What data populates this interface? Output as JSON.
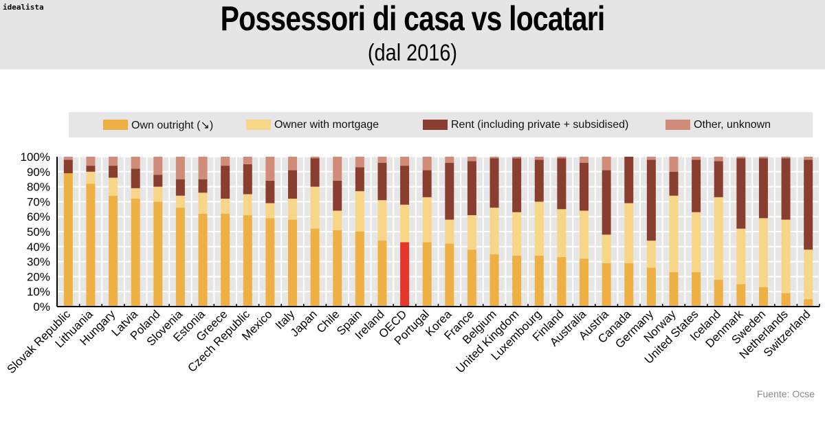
{
  "header": {
    "brand": "idealista",
    "title": "Possessori di casa vs locatari",
    "subtitle": "(dal 2016)"
  },
  "source": "Fuente: Ocse",
  "chart_data": {
    "type": "bar",
    "stacked": true,
    "ylim": [
      0,
      100
    ],
    "grid": true,
    "legend_position": "top",
    "yticks": [
      "0%",
      "10%",
      "20%",
      "30%",
      "40%",
      "50%",
      "60%",
      "70%",
      "80%",
      "90%",
      "100%"
    ],
    "series": [
      {
        "name": "Own outright (↘)",
        "color": "#eeb042"
      },
      {
        "name": "Owner with mortgage",
        "color": "#f7d688"
      },
      {
        "name": "Rent (including private + subsidised)",
        "color": "#8a3e30"
      },
      {
        "name": "Other, unknown",
        "color": "#d08c78"
      }
    ],
    "highlight": {
      "category": "OECD",
      "color": "#e8372a"
    },
    "categories": [
      "Slovak Republic",
      "Lithuania",
      "Hungary",
      "Latvia",
      "Poland",
      "Slovenia",
      "Estonia",
      "Greece",
      "Czech Republic",
      "Mexico",
      "Italy",
      "Japan",
      "Chile",
      "Spain",
      "Ireland",
      "OECD",
      "Portugal",
      "Korea",
      "France",
      "Belgium",
      "United Kingdom",
      "Luxembourg",
      "Finland",
      "Australia",
      "Austria",
      "Canada",
      "Germany",
      "Norway",
      "United States",
      "Iceland",
      "Denmark",
      "Sweden",
      "Netherlands",
      "Switzerland"
    ],
    "values": [
      [
        89,
        0,
        9,
        2
      ],
      [
        82,
        8,
        4,
        6
      ],
      [
        74,
        12,
        8,
        6
      ],
      [
        72,
        7,
        13,
        8
      ],
      [
        70,
        10,
        8,
        12
      ],
      [
        66,
        8,
        11,
        15
      ],
      [
        62,
        14,
        9,
        15
      ],
      [
        62,
        10,
        22,
        6
      ],
      [
        61,
        14,
        20,
        5
      ],
      [
        59,
        10,
        15,
        16
      ],
      [
        58,
        14,
        19,
        9
      ],
      [
        52,
        28,
        19,
        1
      ],
      [
        51,
        13,
        20,
        16
      ],
      [
        50,
        27,
        16,
        7
      ],
      [
        44,
        27,
        25,
        4
      ],
      [
        43,
        25,
        26,
        6
      ],
      [
        43,
        30,
        18,
        9
      ],
      [
        42,
        16,
        38,
        4
      ],
      [
        38,
        23,
        36,
        3
      ],
      [
        35,
        31,
        33,
        1
      ],
      [
        34,
        29,
        36,
        1
      ],
      [
        34,
        36,
        28,
        2
      ],
      [
        33,
        32,
        34,
        1
      ],
      [
        32,
        32,
        32,
        4
      ],
      [
        29,
        19,
        43,
        9
      ],
      [
        29,
        40,
        31,
        0
      ],
      [
        26,
        18,
        54,
        2
      ],
      [
        23,
        51,
        16,
        10
      ],
      [
        23,
        40,
        35,
        2
      ],
      [
        18,
        55,
        24,
        3
      ],
      [
        15,
        37,
        47,
        1
      ],
      [
        13,
        46,
        40,
        1
      ],
      [
        9,
        49,
        41,
        1
      ],
      [
        5,
        33,
        60,
        2
      ]
    ]
  }
}
